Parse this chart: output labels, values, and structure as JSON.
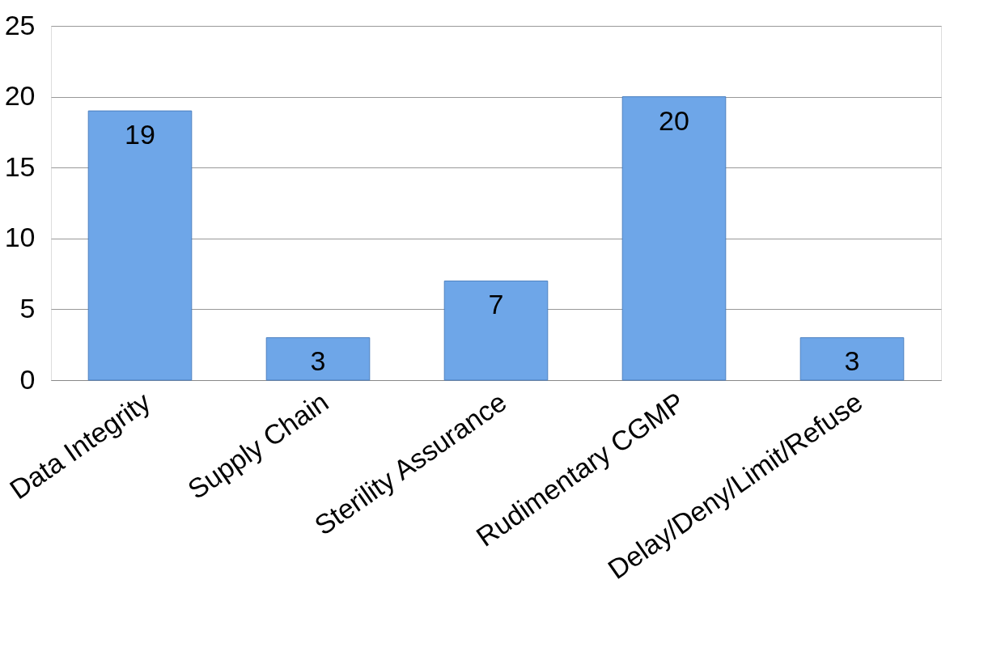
{
  "chart_data": {
    "type": "bar",
    "categories": [
      "Data Integrity",
      "Supply Chain",
      "Sterility Assurance",
      "Rudimentary CGMP",
      "Delay/Deny/Limit/Refuse"
    ],
    "values": [
      19,
      3,
      7,
      20,
      3
    ],
    "color": "#6ea6e8",
    "ylim": [
      0,
      25
    ],
    "yticks": [
      0,
      5,
      10,
      15,
      20,
      25
    ],
    "grid": "y",
    "data_labels": true
  }
}
